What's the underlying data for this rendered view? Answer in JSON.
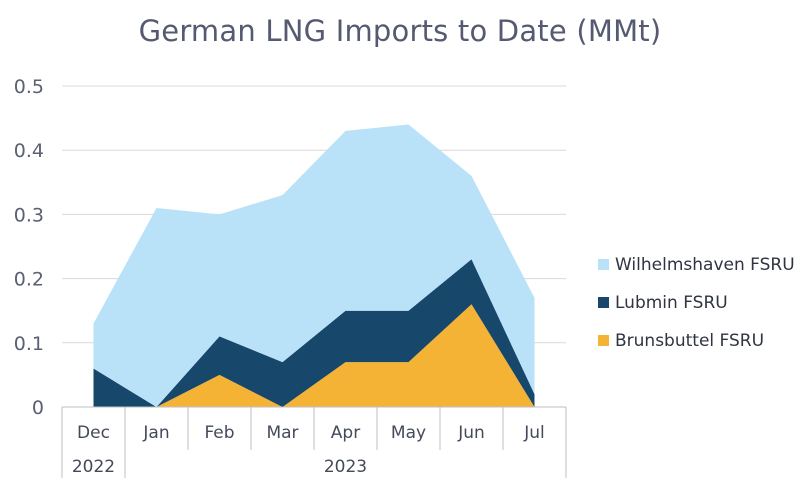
{
  "chart_data": {
    "type": "area",
    "stacked": true,
    "title": "German LNG Imports to Date (MMt)",
    "categories": [
      "Dec",
      "Jan",
      "Feb",
      "Mar",
      "Apr",
      "May",
      "Jun",
      "Jul"
    ],
    "year_groups": [
      {
        "label": "2022",
        "span": 1
      },
      {
        "label": "2023",
        "span": 7
      }
    ],
    "series": [
      {
        "name": "Brunsbuttel FSRU",
        "color": "#f5b335",
        "values": [
          0,
          0,
          0.05,
          0,
          0.07,
          0.07,
          0.16,
          0
        ]
      },
      {
        "name": "Lubmin FSRU",
        "color": "#17476b",
        "values": [
          0.06,
          0,
          0.06,
          0.07,
          0.08,
          0.08,
          0.07,
          0.02
        ]
      },
      {
        "name": "Wilhelmshaven FSRU",
        "color": "#b9e2f8",
        "values": [
          0.07,
          0.31,
          0.19,
          0.26,
          0.28,
          0.29,
          0.13,
          0.15
        ]
      }
    ],
    "legend_order": [
      "Wilhelmshaven FSRU",
      "Lubmin FSRU",
      "Brunsbuttel FSRU"
    ],
    "ylim": [
      0,
      0.5
    ],
    "yticks": [
      "0",
      "0.1",
      "0.2",
      "0.3",
      "0.4",
      "0.5"
    ],
    "grid": true,
    "legend_position": "right"
  }
}
